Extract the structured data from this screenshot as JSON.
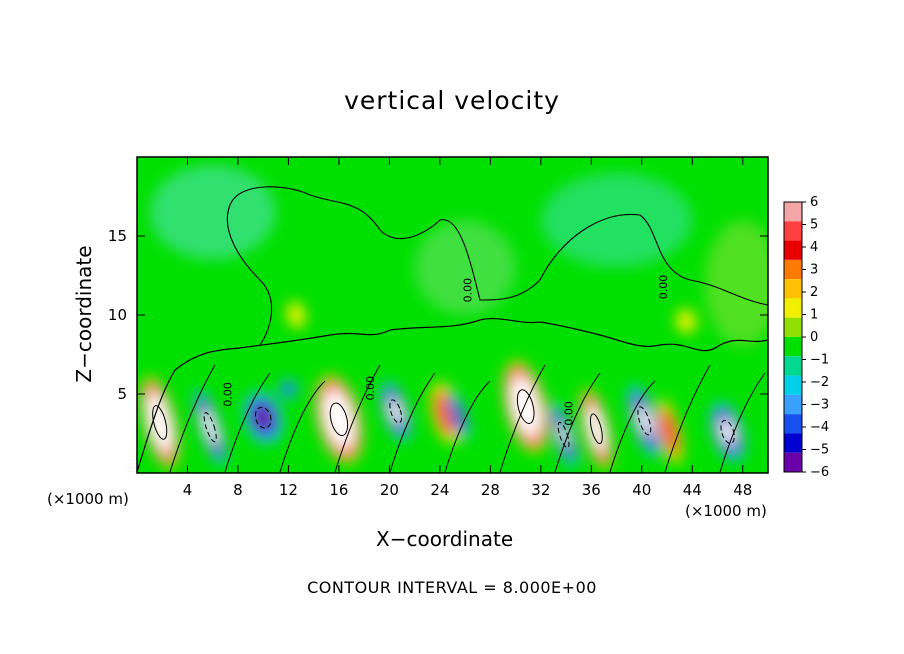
{
  "chart_data": {
    "type": "heatmap",
    "title": "vertical velocity",
    "xlabel": "X−coordinate",
    "ylabel": "Z−coordinate",
    "x_unit_left": "(×1000 m)",
    "x_unit_right": "(×1000 m)",
    "xlim": [
      0,
      50
    ],
    "ylim": [
      0,
      20
    ],
    "x_ticks": [
      4,
      8,
      12,
      16,
      20,
      24,
      28,
      32,
      36,
      40,
      44,
      48
    ],
    "y_ticks": [
      5,
      10,
      15
    ],
    "colorbar": {
      "range": [
        -6,
        6
      ],
      "ticks": [
        6,
        5,
        4,
        3,
        2,
        1,
        0,
        -1,
        -2,
        -3,
        -4,
        -5,
        -6
      ],
      "tick_labels": [
        "6",
        "5",
        "4",
        "3",
        "2",
        "1",
        "0",
        "−1",
        "−2",
        "−3",
        "−4",
        "−5",
        "−6"
      ],
      "colors": [
        "#f4a6a6",
        "#ff4040",
        "#e80000",
        "#ff7a00",
        "#ffc000",
        "#f0f000",
        "#90e000",
        "#00e000",
        "#00d890",
        "#00d0e8",
        "#3aa0ff",
        "#1850f0",
        "#0000d0",
        "#6a00a8"
      ]
    },
    "contour_label": "0.00",
    "contour_interval_text": "CONTOUR INTERVAL = 8.000E+00",
    "cells": [
      {
        "x": 1.8,
        "z": 3.2,
        "w": 2.2,
        "h": 5.2,
        "v": 14
      },
      {
        "x": 5.8,
        "z": 2.9,
        "w": 1.5,
        "h": 4.6,
        "v": -10
      },
      {
        "x": 10.0,
        "z": 3.5,
        "w": 2.8,
        "h": 3.2,
        "v": -7
      },
      {
        "x": 12.0,
        "z": 5.3,
        "w": 1.5,
        "h": 1.2,
        "v": -5
      },
      {
        "x": 16.0,
        "z": 3.4,
        "w": 3.0,
        "h": 5.0,
        "v": 14
      },
      {
        "x": 20.5,
        "z": 3.9,
        "w": 1.8,
        "h": 3.6,
        "v": -9
      },
      {
        "x": 24.5,
        "z": 3.8,
        "w": 2.2,
        "h": 3.8,
        "v": 5
      },
      {
        "x": 25.5,
        "z": 3.6,
        "w": 1.2,
        "h": 3.0,
        "v": -6
      },
      {
        "x": 30.8,
        "z": 4.2,
        "w": 2.8,
        "h": 5.2,
        "v": 14
      },
      {
        "x": 33.8,
        "z": 2.4,
        "w": 1.4,
        "h": 4.0,
        "v": -8
      },
      {
        "x": 36.4,
        "z": 2.8,
        "w": 1.8,
        "h": 4.6,
        "v": 12
      },
      {
        "x": 40.2,
        "z": 3.3,
        "w": 1.8,
        "h": 4.4,
        "v": -9
      },
      {
        "x": 42.2,
        "z": 2.6,
        "w": 1.6,
        "h": 4.0,
        "v": 5
      },
      {
        "x": 46.8,
        "z": 2.6,
        "w": 2.2,
        "h": 3.6,
        "v": -9
      },
      {
        "x": 43.5,
        "z": 9.6,
        "w": 2.0,
        "h": 2.0,
        "v": 1.5
      },
      {
        "x": 12.6,
        "z": 10.0,
        "w": 2.0,
        "h": 2.4,
        "v": 1.2
      }
    ]
  }
}
